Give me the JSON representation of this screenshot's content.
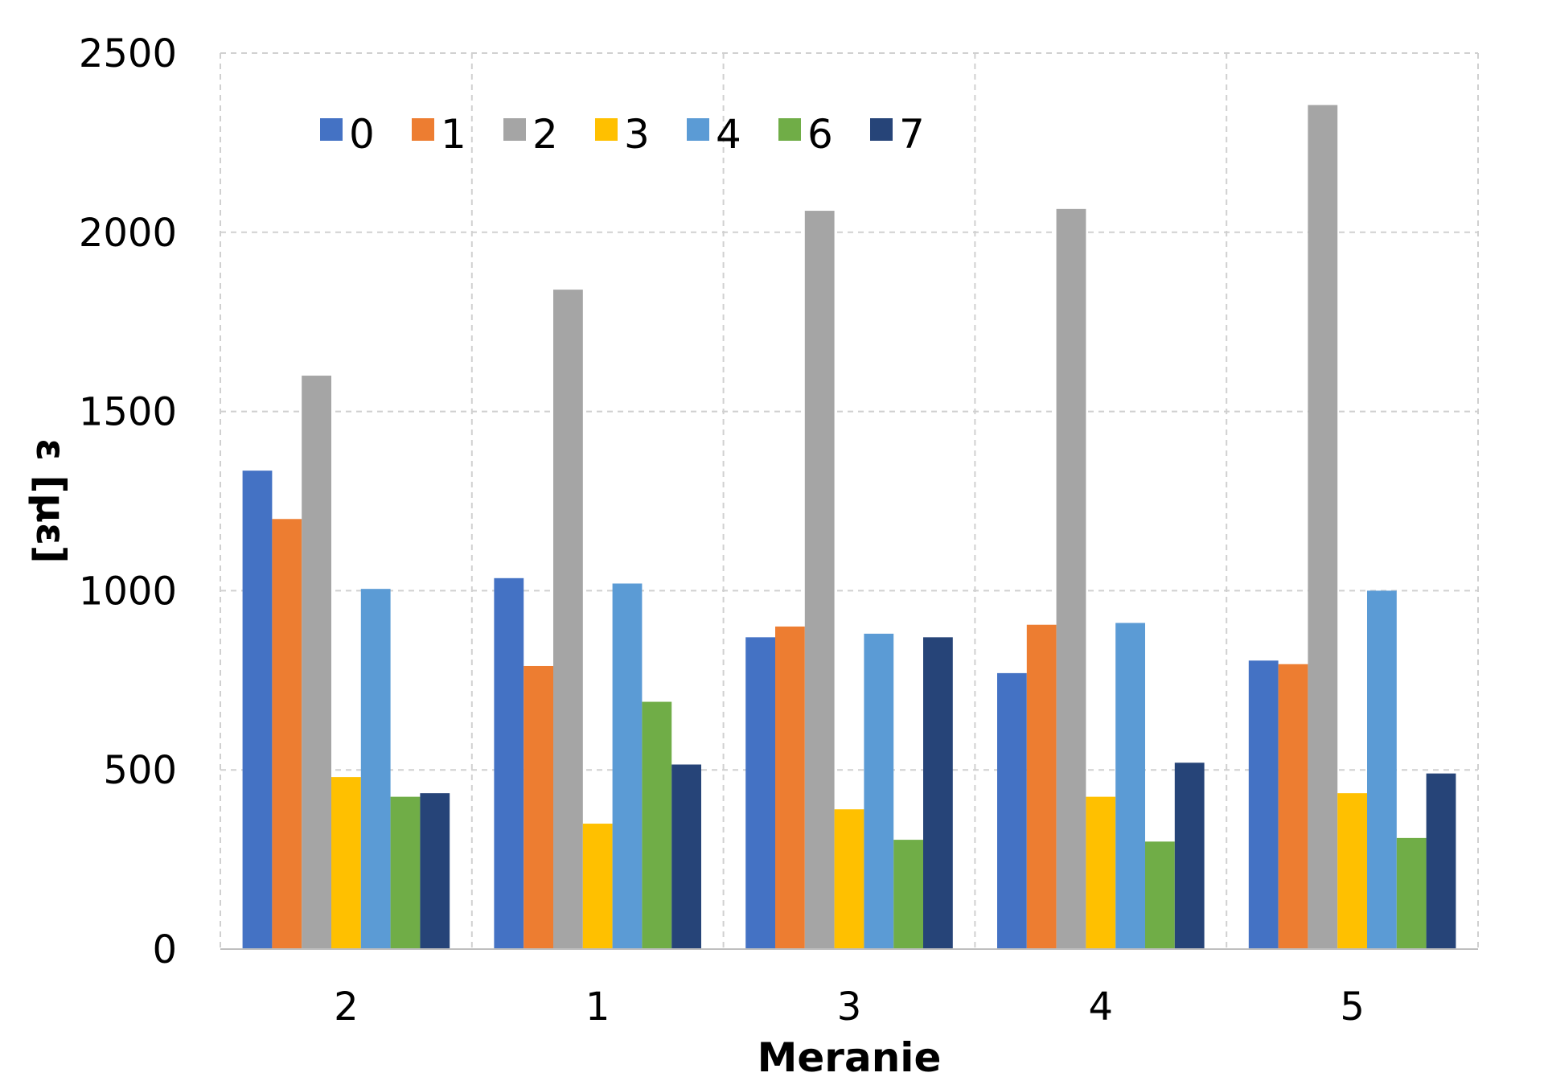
{
  "chart_data": {
    "type": "bar",
    "title": "",
    "xlabel": "Meranie",
    "ylabel": "ε [με]",
    "categories": [
      "2",
      "1",
      "3",
      "4",
      "5"
    ],
    "ylim": [
      0,
      2500
    ],
    "yticks": [
      0,
      500,
      1000,
      1500,
      2000,
      2500
    ],
    "grid": true,
    "legend_position": "top-left",
    "series": [
      {
        "name": "0",
        "color": "#4472C4",
        "values": [
          1335,
          1035,
          870,
          770,
          805
        ]
      },
      {
        "name": "1",
        "color": "#ED7D31",
        "values": [
          1200,
          790,
          900,
          905,
          795
        ]
      },
      {
        "name": "2",
        "color": "#A5A5A5",
        "values": [
          1600,
          1840,
          2060,
          2065,
          2355
        ]
      },
      {
        "name": "3",
        "color": "#FFC000",
        "values": [
          480,
          350,
          390,
          425,
          435
        ]
      },
      {
        "name": "4",
        "color": "#5B9BD5",
        "values": [
          1005,
          1020,
          880,
          910,
          1000
        ]
      },
      {
        "name": "6",
        "color": "#70AD47",
        "values": [
          425,
          690,
          305,
          300,
          310
        ]
      },
      {
        "name": "7",
        "color": "#264478",
        "values": [
          435,
          515,
          870,
          520,
          490
        ]
      }
    ]
  }
}
